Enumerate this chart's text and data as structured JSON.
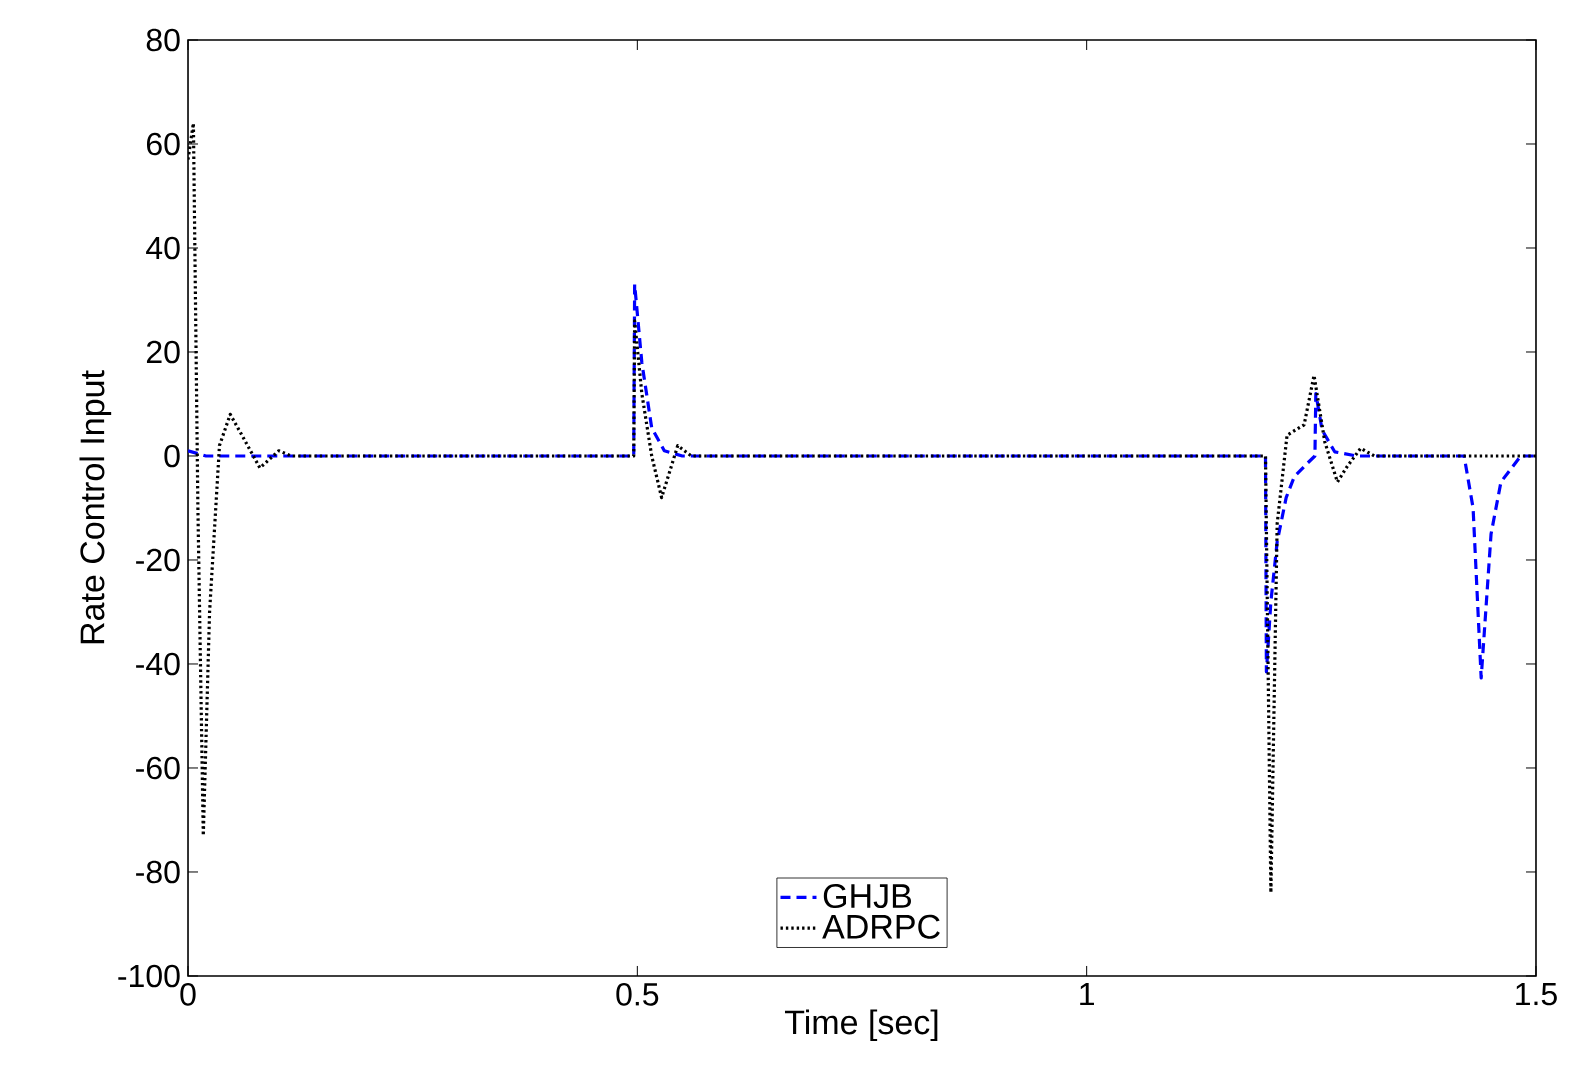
{
  "chart_data": {
    "type": "line",
    "xlabel": "Time [sec]",
    "ylabel": "Rate Control Input",
    "xlim": [
      0,
      1.5
    ],
    "ylim": [
      -100,
      80
    ],
    "xticks": [
      0,
      0.5,
      1,
      1.5
    ],
    "yticks": [
      -100,
      -80,
      -60,
      -40,
      -20,
      0,
      20,
      40,
      60,
      80
    ],
    "grid": false,
    "legend": "bottom",
    "series": [
      {
        "name": "GHJB",
        "color": "#0000ff",
        "line_style": "dashed",
        "x": [
          0,
          0.01,
          0.02,
          0.496,
          0.497,
          0.505,
          0.516,
          0.53,
          0.55,
          1.199,
          1.2,
          1.205,
          1.212,
          1.222,
          1.231,
          1.245,
          1.254,
          1.255,
          1.262,
          1.276,
          1.3,
          1.42,
          1.43,
          1.439,
          1.45,
          1.461,
          1.483,
          1.5
        ],
        "values": [
          1,
          0.5,
          0,
          0,
          33,
          18,
          5.4,
          1,
          0,
          0,
          -41.5,
          -28,
          -16.5,
          -8,
          -4,
          -1.5,
          0,
          12,
          5,
          0.8,
          0,
          0,
          -10,
          -42.7,
          -15,
          -5,
          0,
          0
        ]
      },
      {
        "name": "ADRPC",
        "color": "#000000",
        "line_style": "dotted",
        "x": [
          0,
          0.006,
          0.011,
          0.017,
          0.024,
          0.035,
          0.047,
          0.06,
          0.08,
          0.101,
          0.115,
          0.496,
          0.497,
          0.505,
          0.516,
          0.527,
          0.545,
          0.56,
          1.199,
          1.205,
          1.212,
          1.223,
          1.242,
          1.253,
          1.265,
          1.279,
          1.29,
          1.305,
          1.32,
          1.5
        ],
        "values": [
          57,
          64,
          -10,
          -73,
          -30,
          2,
          8,
          4,
          -2.3,
          1,
          0,
          0,
          26,
          12,
          0,
          -8,
          2,
          0,
          0,
          -84,
          -13,
          4,
          6,
          15.5,
          2.7,
          -5,
          -2,
          1.5,
          0,
          0
        ]
      }
    ]
  }
}
